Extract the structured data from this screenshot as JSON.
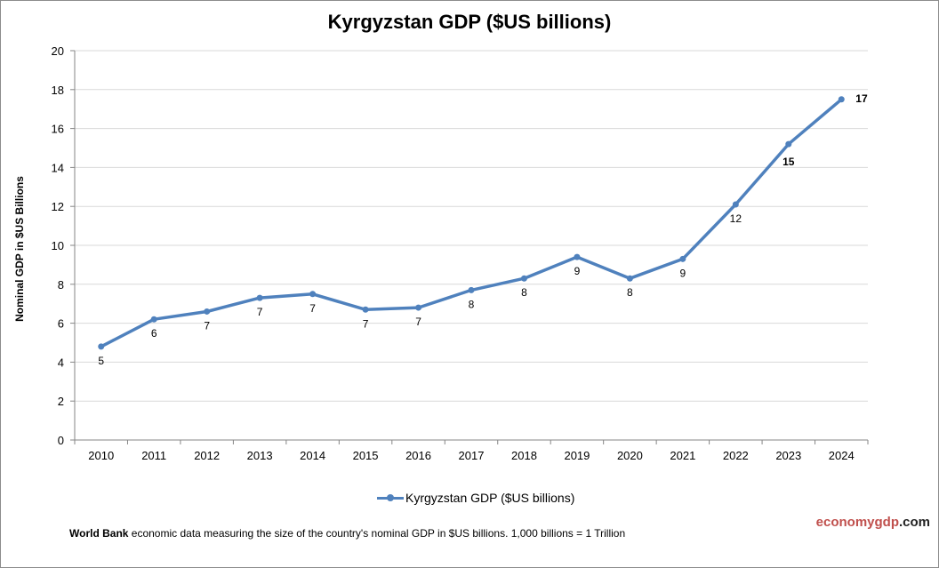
{
  "chart_data": {
    "type": "line",
    "title": "Kyrgyzstan GDP ($US billions)",
    "xlabel": "",
    "ylabel": "Nominal GDP in $US Billions",
    "ylim": [
      0,
      20
    ],
    "yticks": [
      "0",
      "2",
      "4",
      "6",
      "8",
      "10",
      "12",
      "14",
      "16",
      "18",
      "20"
    ],
    "grid": true,
    "categories": [
      "2010",
      "2011",
      "2012",
      "2013",
      "2014",
      "2015",
      "2016",
      "2017",
      "2018",
      "2019",
      "2020",
      "2021",
      "2022",
      "2023",
      "2024"
    ],
    "series": [
      {
        "name": "Kyrgyzstan GDP ($US billions)",
        "color": "#4f81bd",
        "values": [
          4.8,
          6.2,
          6.6,
          7.3,
          7.5,
          6.7,
          6.8,
          7.7,
          8.3,
          9.4,
          8.3,
          9.3,
          12.1,
          15.2,
          17.5
        ],
        "data_labels": [
          "5",
          "6",
          "7",
          "7",
          "7",
          "7",
          "7",
          "8",
          "8",
          "9",
          "8",
          "9",
          "12",
          "15",
          "17"
        ]
      }
    ],
    "legend_position": "bottom"
  },
  "footer": {
    "source_bold": "World Bank",
    "source_text": " economic data  measuring the size of the country's nominal GDP in $US billions. 1,000 billions = 1 Trillion",
    "brand_part1": "economygdp",
    "brand_part2": ".com"
  }
}
